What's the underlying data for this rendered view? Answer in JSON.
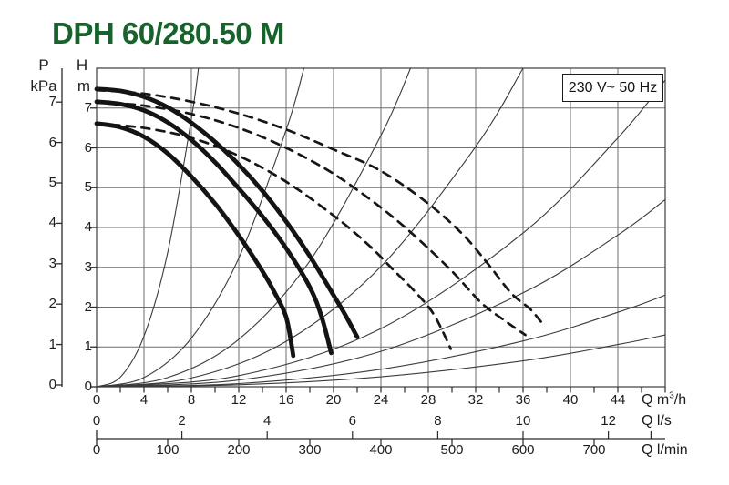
{
  "title": "DPH 60/280.50 M",
  "voltage_box": {
    "text": "230 V~ 50 Hz"
  },
  "chart_data": {
    "type": "line",
    "title": "DPH 60/280.50 M",
    "power_supply": "230 V~ 50 Hz",
    "grid": true,
    "legend": "none",
    "x_axis": {
      "unit_prefix": "Q m",
      "unit_sup": "3",
      "unit_suffix": "/h",
      "ticks": [
        0,
        4,
        8,
        12,
        16,
        20,
        24,
        28,
        32,
        36,
        40,
        44
      ],
      "minor_tick_step": 2,
      "range": [
        0,
        48
      ],
      "gridline_step": 4
    },
    "y_axis_head": {
      "symbol": "H",
      "unit": "m",
      "ticks": [
        7,
        6,
        5,
        4,
        3,
        2,
        1,
        0
      ],
      "range": [
        0,
        8
      ],
      "gridline_step": 1
    },
    "y_axis_pressure": {
      "symbol": "P",
      "unit": "kPa",
      "ticks": [
        7,
        6,
        5,
        4,
        3,
        2,
        1,
        0
      ],
      "meters_per_tick": 1.0197
    },
    "x_axis_ls": {
      "unit": "Q l/s",
      "ticks": [
        0,
        2,
        4,
        6,
        8,
        10,
        12
      ],
      "unlabeled_ticks": [
        13
      ],
      "m3h_per_unit": 3.6
    },
    "x_axis_lmin": {
      "unit": "Q l/min",
      "ticks": [
        0,
        100,
        200,
        300,
        400,
        500,
        600,
        700
      ],
      "m3h_per_unit": 0.06
    },
    "series": [
      {
        "name": "system-curve-1",
        "style": "thin",
        "points": [
          [
            0,
            0
          ],
          [
            2,
            0.24
          ],
          [
            4,
            1.27
          ],
          [
            6,
            3.37
          ],
          [
            8,
            6.73
          ],
          [
            8.6,
            8
          ]
        ]
      },
      {
        "name": "system-curve-2",
        "style": "thin",
        "points": [
          [
            0,
            0
          ],
          [
            4,
            0.23
          ],
          [
            8,
            1.22
          ],
          [
            12,
            3.23
          ],
          [
            16,
            6.45
          ],
          [
            17.5,
            8
          ]
        ]
      },
      {
        "name": "system-curve-3",
        "style": "thin",
        "points": [
          [
            0,
            0
          ],
          [
            6,
            0.23
          ],
          [
            12,
            1.19
          ],
          [
            18,
            3.16
          ],
          [
            24,
            6.31
          ],
          [
            26.5,
            8
          ]
        ]
      },
      {
        "name": "system-curve-4",
        "style": "thin",
        "points": [
          [
            0,
            0
          ],
          [
            8,
            0.22
          ],
          [
            16,
            1.14
          ],
          [
            24,
            3.02
          ],
          [
            32,
            6.03
          ],
          [
            36,
            8
          ]
        ]
      },
      {
        "name": "system-curve-5",
        "style": "thin",
        "points": [
          [
            0,
            0
          ],
          [
            12,
            0.28
          ],
          [
            24,
            1.46
          ],
          [
            36,
            3.86
          ],
          [
            44,
            6.25
          ],
          [
            48,
            7.7
          ]
        ]
      },
      {
        "name": "system-curve-6",
        "style": "thin",
        "points": [
          [
            0,
            0
          ],
          [
            12,
            0.17
          ],
          [
            24,
            0.89
          ],
          [
            36,
            2.36
          ],
          [
            44,
            3.81
          ],
          [
            48,
            4.7
          ]
        ]
      },
      {
        "name": "system-curve-7",
        "style": "thin",
        "points": [
          [
            0,
            0
          ],
          [
            12,
            0.08
          ],
          [
            24,
            0.44
          ],
          [
            36,
            1.15
          ],
          [
            44,
            1.87
          ],
          [
            48,
            2.3
          ]
        ]
      },
      {
        "name": "system-curve-8",
        "style": "thin",
        "points": [
          [
            0,
            0
          ],
          [
            12,
            0.05
          ],
          [
            24,
            0.25
          ],
          [
            36,
            0.65
          ],
          [
            44,
            1.06
          ],
          [
            48,
            1.3
          ]
        ]
      },
      {
        "name": "head-curve-speed3-parallel-dashed",
        "style": "dashed",
        "points": [
          [
            0,
            7.45
          ],
          [
            4,
            7.36
          ],
          [
            8,
            7.16
          ],
          [
            12,
            6.86
          ],
          [
            16,
            6.46
          ],
          [
            20,
            5.96
          ],
          [
            24,
            5.42
          ],
          [
            28,
            4.6
          ],
          [
            31,
            3.8
          ],
          [
            33,
            3.1
          ],
          [
            35,
            2.35
          ],
          [
            36.6,
            1.95
          ],
          [
            37.6,
            1.6
          ]
        ]
      },
      {
        "name": "head-curve-speed2-parallel-dashed",
        "style": "dashed",
        "points": [
          [
            0,
            7.16
          ],
          [
            4,
            7.06
          ],
          [
            8,
            6.85
          ],
          [
            12,
            6.5
          ],
          [
            16,
            6.0
          ],
          [
            20,
            5.35
          ],
          [
            24,
            4.5
          ],
          [
            27,
            3.75
          ],
          [
            30,
            2.9
          ],
          [
            32.5,
            2.1
          ],
          [
            34.5,
            1.65
          ],
          [
            36.2,
            1.3
          ]
        ]
      },
      {
        "name": "head-curve-speed1-parallel-dashed",
        "style": "dashed",
        "points": [
          [
            0,
            6.61
          ],
          [
            4,
            6.5
          ],
          [
            8,
            6.25
          ],
          [
            12,
            5.8
          ],
          [
            16,
            5.15
          ],
          [
            20,
            4.3
          ],
          [
            23,
            3.55
          ],
          [
            25,
            2.95
          ],
          [
            27,
            2.35
          ],
          [
            28.5,
            1.8
          ],
          [
            29.9,
            0.95
          ]
        ]
      },
      {
        "name": "head-curve-speed3",
        "style": "thick",
        "points": [
          [
            0,
            7.48
          ],
          [
            2,
            7.43
          ],
          [
            4,
            7.28
          ],
          [
            6,
            7.02
          ],
          [
            8,
            6.63
          ],
          [
            10,
            6.15
          ],
          [
            12,
            5.58
          ],
          [
            14,
            4.92
          ],
          [
            16,
            4.15
          ],
          [
            18,
            3.28
          ],
          [
            20,
            2.3
          ],
          [
            21,
            1.8
          ],
          [
            22,
            1.25
          ]
        ]
      },
      {
        "name": "head-curve-speed2",
        "style": "thick",
        "points": [
          [
            0,
            7.16
          ],
          [
            2,
            7.1
          ],
          [
            4,
            6.94
          ],
          [
            6,
            6.64
          ],
          [
            8,
            6.2
          ],
          [
            10,
            5.64
          ],
          [
            12,
            4.98
          ],
          [
            14,
            4.28
          ],
          [
            16,
            3.48
          ],
          [
            18,
            2.5
          ],
          [
            19,
            1.75
          ],
          [
            19.8,
            0.85
          ]
        ]
      },
      {
        "name": "head-curve-speed1",
        "style": "thick",
        "points": [
          [
            0,
            6.61
          ],
          [
            2,
            6.52
          ],
          [
            4,
            6.28
          ],
          [
            6,
            5.86
          ],
          [
            8,
            5.28
          ],
          [
            10,
            4.6
          ],
          [
            12,
            3.8
          ],
          [
            14,
            2.9
          ],
          [
            15,
            2.38
          ],
          [
            16,
            1.75
          ],
          [
            16.6,
            0.78
          ]
        ]
      }
    ]
  }
}
